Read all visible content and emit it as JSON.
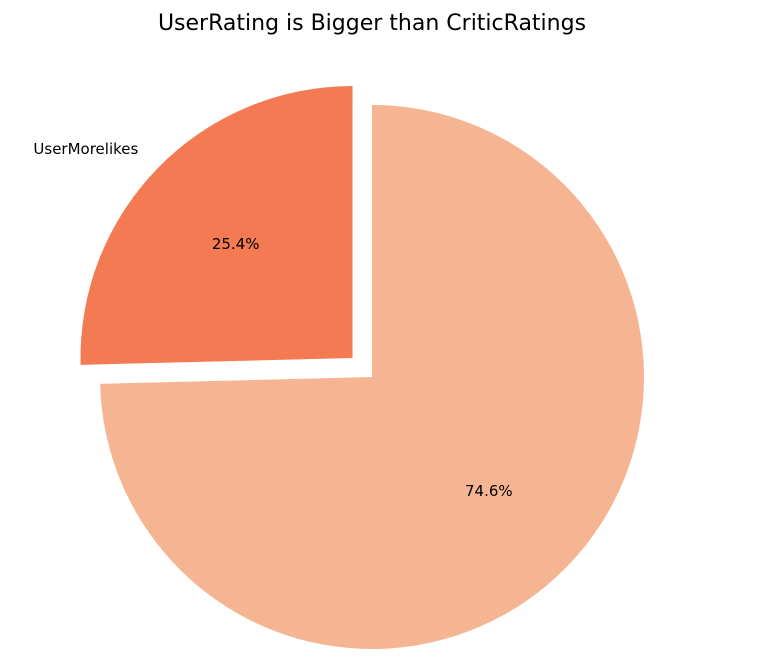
{
  "chart_data": {
    "type": "pie",
    "title": "UserRating is Bigger than CriticRatings",
    "start_angle_deg": 90,
    "direction": "counterclockwise",
    "slices": [
      {
        "label": "UserMorelikes",
        "value": 25.4,
        "pct_label": "25.4%",
        "color": "#f47a54",
        "exploded": true
      },
      {
        "label": "",
        "value": 74.6,
        "pct_label": "74.6%",
        "color": "#f6b592",
        "exploded": false
      }
    ]
  }
}
